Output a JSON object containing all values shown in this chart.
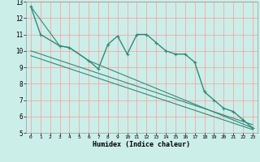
{
  "xlabel": "Humidex (Indice chaleur)",
  "bg_color": "#cceee8",
  "grid_color": "#ff9999",
  "line_color": "#2e8b7a",
  "xlim": [
    -0.5,
    23.5
  ],
  "ylim": [
    5,
    13
  ],
  "xticks": [
    0,
    1,
    2,
    3,
    4,
    5,
    6,
    7,
    8,
    9,
    10,
    11,
    12,
    13,
    14,
    15,
    16,
    17,
    18,
    19,
    20,
    21,
    22,
    23
  ],
  "yticks": [
    5,
    6,
    7,
    8,
    9,
    10,
    11,
    12,
    13
  ],
  "series": [
    {
      "x": [
        0,
        1,
        3,
        4,
        6,
        7,
        8,
        9,
        10,
        11,
        12,
        13,
        14,
        15,
        16,
        17,
        18,
        19,
        20,
        21,
        22,
        23
      ],
      "y": [
        12.7,
        11.0,
        10.3,
        10.2,
        9.4,
        8.9,
        10.4,
        10.9,
        9.8,
        11.0,
        11.0,
        10.5,
        10.0,
        9.8,
        9.8,
        9.3,
        7.5,
        7.0,
        6.5,
        6.3,
        5.8,
        5.3
      ],
      "marker": true,
      "linewidth": 1.0
    },
    {
      "x": [
        0,
        3,
        4,
        6,
        23
      ],
      "y": [
        12.7,
        10.3,
        10.2,
        9.4,
        5.3
      ],
      "marker": false,
      "linewidth": 0.8
    },
    {
      "x": [
        0,
        23
      ],
      "y": [
        10.0,
        5.5
      ],
      "marker": false,
      "linewidth": 0.8
    },
    {
      "x": [
        0,
        23
      ],
      "y": [
        9.7,
        5.2
      ],
      "marker": false,
      "linewidth": 0.8
    }
  ],
  "xlabel_fontsize": 6,
  "xlabel_fontweight": "bold",
  "tick_fontsize_x": 4.5,
  "tick_fontsize_y": 5.5
}
